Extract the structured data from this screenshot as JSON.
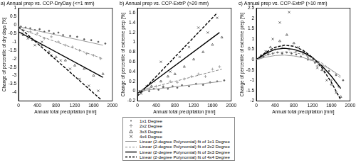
{
  "chart_data": [
    {
      "type": "scatter",
      "title": "a) Annual prep vs. CCP-DryDay (<=1 mm)",
      "x_label": "Annual total precipitation [mm]",
      "y_label": "Change of percentile of dry days [%]",
      "xlim": [
        0,
        2000
      ],
      "xticks": [
        0,
        400,
        800,
        1200,
        1600,
        2000
      ],
      "ylim": [
        -4.5,
        1
      ],
      "yticks": [
        -4,
        -3.5,
        -3,
        -2.5,
        -2,
        -1.5,
        -1,
        -0.5,
        0,
        0.5,
        1
      ],
      "grid": false,
      "series": [
        {
          "name": "1x1 Degree",
          "type": "scatter",
          "marker": "point",
          "color": "#555555",
          "x": [
            50,
            150,
            250,
            350,
            450,
            550,
            650,
            750,
            850,
            950,
            1100,
            1250,
            1400,
            1550,
            1700,
            1850
          ],
          "values": [
            -0.1,
            -0.15,
            -0.2,
            -0.3,
            -0.25,
            -0.4,
            -0.35,
            -0.5,
            -0.45,
            -0.6,
            -0.65,
            -0.7,
            -0.85,
            -0.9,
            -1.0,
            -1.1
          ]
        },
        {
          "name": "2x2 Degree",
          "type": "scatter",
          "marker": "plus",
          "color": "#888888",
          "x": [
            100,
            250,
            400,
            550,
            700,
            850,
            1000,
            1150,
            1300,
            1450,
            1600,
            1750
          ],
          "values": [
            -0.3,
            -0.4,
            -0.5,
            -0.8,
            -0.7,
            -1.0,
            -1.2,
            -1.3,
            -1.5,
            -1.7,
            -1.8,
            -2.0
          ]
        },
        {
          "name": "3x3 Degree",
          "type": "scatter",
          "marker": "triangle",
          "color": "#444444",
          "x": [
            100,
            300,
            500,
            650,
            800,
            1000,
            1200,
            1400,
            1600,
            1800
          ],
          "values": [
            -0.6,
            -0.9,
            -1.2,
            -1.6,
            -1.9,
            -2.1,
            -2.4,
            -2.6,
            -3.0,
            -2.9
          ]
        },
        {
          "name": "4x4 Degree",
          "type": "scatter",
          "marker": "x",
          "color": "#333333",
          "x": [
            80,
            200,
            350,
            500,
            700,
            900,
            1100,
            1300,
            1500,
            1700
          ],
          "values": [
            -0.5,
            -0.8,
            -1.2,
            -1.0,
            -1.8,
            -2.1,
            -2.6,
            -3.2,
            -3.6,
            -3.9
          ]
        },
        {
          "name": "Linear (2-degree Polynomial) fit of 1x1 Degree",
          "type": "line",
          "line_style": "solid",
          "color": "#999999",
          "x": [
            0,
            1800
          ],
          "values": [
            -0.1,
            -1.2
          ]
        },
        {
          "name": "Linear (2-degree Polynomial) fit of 2x2 Degree",
          "type": "line",
          "line_style": "dashed",
          "color": "#888888",
          "x": [
            0,
            1800
          ],
          "values": [
            -0.2,
            -2.0
          ]
        },
        {
          "name": "Linear (2-degree Polynomial) fit of 3x3 Degree",
          "type": "line",
          "line_style": "solid",
          "color": "#000000",
          "x": [
            0,
            1800
          ],
          "values": [
            -0.4,
            -3.1
          ]
        },
        {
          "name": "Linear (2-degree Polynomial) fit of 4x4 Degree",
          "type": "line",
          "line_style": "dashed",
          "color": "#000000",
          "x": [
            0,
            1750
          ],
          "values": [
            -0.1,
            -4.4
          ]
        }
      ]
    },
    {
      "type": "scatter",
      "title": "b) Annual prep vs. CCP-ExtrP (>20 mm)",
      "x_label": "Annual total precipitation [mm]",
      "y_label": "Change of percentile of extreme prep [%]",
      "xlim": [
        0,
        2000
      ],
      "xticks": [
        0,
        400,
        800,
        1200,
        1600,
        2000
      ],
      "ylim": [
        -0.2,
        1.7
      ],
      "yticks": [
        -0.2,
        0,
        0.2,
        0.4,
        0.6,
        0.8,
        1,
        1.2,
        1.4,
        1.6
      ],
      "grid": false,
      "legend": "bottom",
      "series": [
        {
          "name": "1x1 Degree",
          "type": "scatter",
          "marker": "point",
          "color": "#555555",
          "x": [
            50,
            150,
            250,
            350,
            450,
            550,
            650,
            750,
            850,
            950,
            1100,
            1250,
            1400,
            1550,
            1700,
            1850
          ],
          "values": [
            0.0,
            0.02,
            0.0,
            0.05,
            0.03,
            0.08,
            0.05,
            0.1,
            0.07,
            0.12,
            0.1,
            0.15,
            0.13,
            0.18,
            0.2,
            0.22
          ]
        },
        {
          "name": "2x2 Degree",
          "type": "scatter",
          "marker": "plus",
          "color": "#888888",
          "x": [
            100,
            250,
            400,
            550,
            700,
            850,
            1000,
            1150,
            1300,
            1450,
            1600,
            1750
          ],
          "values": [
            0.0,
            0.05,
            0.1,
            0.1,
            0.2,
            0.18,
            0.25,
            0.3,
            0.35,
            0.3,
            0.45,
            0.5
          ]
        },
        {
          "name": "3x3 Degree",
          "type": "scatter",
          "marker": "triangle",
          "color": "#444444",
          "x": [
            100,
            300,
            500,
            650,
            800,
            1000,
            1200,
            1400,
            1600,
            1800
          ],
          "values": [
            0.0,
            0.1,
            0.2,
            0.3,
            0.35,
            0.5,
            0.65,
            0.8,
            0.95,
            1.1
          ]
        },
        {
          "name": "4x4 Degree",
          "type": "scatter",
          "marker": "x",
          "color": "#333333",
          "x": [
            80,
            200,
            350,
            500,
            700,
            900,
            1100,
            1300,
            1500,
            1700
          ],
          "values": [
            -0.05,
            0.1,
            0.2,
            0.6,
            0.4,
            0.7,
            0.9,
            1.3,
            1.2,
            1.5
          ]
        },
        {
          "name": "Linear (2-degree Polynomial) fit of 1x1 Degree",
          "type": "line",
          "line_style": "solid",
          "color": "#999999",
          "x": [
            0,
            1800
          ],
          "values": [
            0.0,
            0.2
          ]
        },
        {
          "name": "Linear (2-degree Polynomial) fit of 2x2 Degree",
          "type": "line",
          "line_style": "dashed",
          "color": "#888888",
          "x": [
            0,
            1800
          ],
          "values": [
            0.0,
            0.45
          ]
        },
        {
          "name": "Linear (2-degree Polynomial) fit of 3x3 Degree",
          "type": "line",
          "line_style": "solid",
          "color": "#000000",
          "x": [
            0,
            1750
          ],
          "values": [
            -0.05,
            1.2
          ]
        },
        {
          "name": "Linear (2-degree Polynomial) fit of 4x4 Degree",
          "type": "line",
          "line_style": "dashed",
          "color": "#000000",
          "x": [
            0,
            1700
          ],
          "values": [
            -0.1,
            1.6
          ]
        }
      ]
    },
    {
      "type": "scatter",
      "title": "c) Annual prep vs. CCP-ExtrP (>10 mm)",
      "x_label": "Annual total precipitation [mm]",
      "y_label": "Change of percentile of extreme prep [%]",
      "xlim": [
        0,
        2000
      ],
      "xticks": [
        0,
        400,
        800,
        1200,
        1600,
        2000
      ],
      "ylim": [
        -2,
        2.5
      ],
      "yticks": [
        -2,
        -1.5,
        -1,
        -0.5,
        0,
        0.5,
        1,
        1.5,
        2,
        2.5
      ],
      "grid": false,
      "series": [
        {
          "name": "1x1 Degree",
          "type": "scatter",
          "marker": "point",
          "color": "#555555",
          "x": [
            50,
            150,
            250,
            350,
            450,
            550,
            650,
            750,
            850,
            950,
            1100,
            1250,
            1400,
            1550,
            1700,
            1850
          ],
          "values": [
            0.05,
            0.15,
            0.25,
            0.3,
            0.35,
            0.3,
            0.35,
            0.3,
            0.25,
            0.15,
            0.0,
            -0.15,
            -0.35,
            -0.55,
            -0.75,
            -1.0
          ]
        },
        {
          "name": "2x2 Degree",
          "type": "scatter",
          "marker": "plus",
          "color": "#888888",
          "x": [
            100,
            250,
            400,
            550,
            700,
            850,
            1000,
            1150,
            1300,
            1450,
            1600,
            1750
          ],
          "values": [
            0.1,
            0.3,
            0.5,
            0.6,
            0.5,
            0.4,
            0.3,
            0.0,
            -0.3,
            -0.6,
            -1.0,
            -1.3
          ]
        },
        {
          "name": "3x3 Degree",
          "type": "scatter",
          "marker": "triangle",
          "color": "#444444",
          "x": [
            100,
            300,
            500,
            650,
            800,
            1000,
            1200,
            1400,
            1600,
            1800
          ],
          "values": [
            0.2,
            0.6,
            0.9,
            1.2,
            0.8,
            0.4,
            0.0,
            -0.5,
            -1.2,
            -1.8
          ]
        },
        {
          "name": "4x4 Degree",
          "type": "scatter",
          "marker": "x",
          "color": "#333333",
          "x": [
            80,
            200,
            350,
            500,
            700,
            900,
            1100,
            1300,
            1500,
            1700
          ],
          "values": [
            0.1,
            0.4,
            1.0,
            1.8,
            2.3,
            0.6,
            0.1,
            -0.4,
            -1.0,
            -1.6
          ]
        },
        {
          "name": "Linear (2-degree Polynomial) fit of 1x1 Degree",
          "type": "line",
          "line_style": "solid",
          "color": "#999999",
          "x": [
            0,
            200,
            400,
            600,
            800,
            1000,
            1200,
            1400,
            1600,
            1800
          ],
          "values": [
            0,
            0.12,
            0.2,
            0.22,
            0.18,
            0.1,
            -0.05,
            -0.25,
            -0.5,
            -0.8
          ]
        },
        {
          "name": "Linear (2-degree Polynomial) fit of 2x2 Degree",
          "type": "line",
          "line_style": "dashed",
          "color": "#888888",
          "x": [
            0,
            200,
            400,
            600,
            800,
            1000,
            1200,
            1400,
            1600,
            1800
          ],
          "values": [
            0,
            0.2,
            0.33,
            0.38,
            0.35,
            0.25,
            0.08,
            -0.17,
            -0.5,
            -0.9
          ]
        },
        {
          "name": "Linear (2-degree Polynomial) fit of 3x3 Degree",
          "type": "line",
          "line_style": "solid",
          "color": "#000000",
          "x": [
            0,
            200,
            400,
            600,
            800,
            1000,
            1200,
            1400,
            1600,
            1800
          ],
          "values": [
            0,
            0.3,
            0.5,
            0.55,
            0.5,
            0.35,
            0.1,
            -0.3,
            -0.8,
            -1.4
          ]
        },
        {
          "name": "Linear (2-degree Polynomial) fit of 4x4 Degree",
          "type": "line",
          "line_style": "dashed",
          "color": "#000000",
          "x": [
            0,
            200,
            400,
            600,
            800,
            1000,
            1200,
            1400,
            1600,
            1800
          ],
          "values": [
            0,
            0.35,
            0.6,
            0.7,
            0.65,
            0.45,
            0.1,
            -0.4,
            -1.1,
            -1.95
          ]
        }
      ]
    }
  ]
}
